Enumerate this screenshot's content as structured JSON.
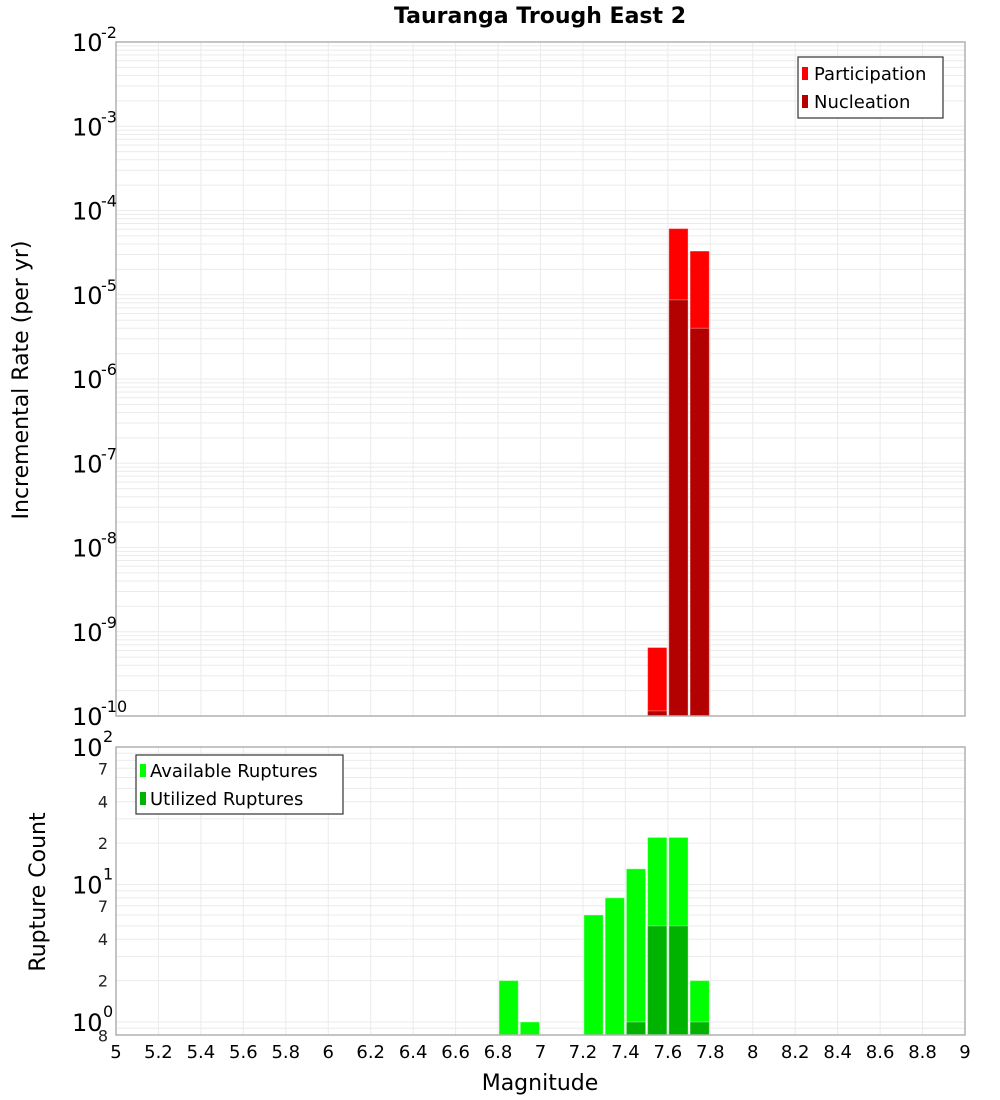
{
  "title": "Tauranga Trough East 2",
  "colors": {
    "participation": "#ff0000",
    "nucleation": "#b30000",
    "available": "#00ff00",
    "utilized": "#00b300",
    "grid": "#ebebeb",
    "axis": "#b0b0b0"
  },
  "chart_data": [
    {
      "type": "bar",
      "title": "Tauranga Trough East 2",
      "xlabel": "Magnitude",
      "ylabel": "Incremental Rate (per yr)",
      "yscale": "log",
      "xlim": [
        5,
        9
      ],
      "ylim": [
        1e-10,
        0.01
      ],
      "ytick_exponents": [
        -2,
        -3,
        -4,
        -5,
        -6,
        -7,
        -8,
        -9,
        -10
      ],
      "bin_width": 0.1,
      "legend": [
        "Participation",
        "Nucleation"
      ],
      "legend_position": "upper right",
      "grid": true,
      "series": [
        {
          "name": "Participation",
          "x": [
            7.55,
            7.65,
            7.75
          ],
          "values": [
            6.5e-10,
            6.1e-05,
            3.3e-05
          ]
        },
        {
          "name": "Nucleation",
          "x": [
            7.55,
            7.65,
            7.75
          ],
          "values": [
            1.15e-10,
            8.7e-06,
            4e-06
          ]
        }
      ]
    },
    {
      "type": "bar",
      "xlabel": "Magnitude",
      "ylabel": "Rupture Count",
      "yscale": "log",
      "xlim": [
        5,
        9
      ],
      "ylim": [
        0.8,
        100
      ],
      "bin_width": 0.1,
      "legend": [
        "Available Ruptures",
        "Utilized Ruptures"
      ],
      "legend_position": "upper left",
      "grid": true,
      "series": [
        {
          "name": "Available Ruptures",
          "x": [
            6.85,
            6.95,
            7.25,
            7.35,
            7.45,
            7.55,
            7.65,
            7.75
          ],
          "values": [
            2,
            1,
            6,
            8,
            13,
            22,
            22,
            2
          ]
        },
        {
          "name": "Utilized Ruptures",
          "x": [
            7.45,
            7.55,
            7.65,
            7.75
          ],
          "values": [
            1,
            5,
            5,
            1
          ]
        }
      ]
    }
  ],
  "xticks": [
    "5",
    "5.2",
    "5.4",
    "5.6",
    "5.8",
    "6",
    "6.2",
    "6.4",
    "6.6",
    "6.8",
    "7",
    "7.2",
    "7.4",
    "7.6",
    "7.8",
    "8",
    "8.2",
    "8.4",
    "8.6",
    "8.8",
    "9"
  ],
  "bottom_yticks": {
    "major": [
      {
        "base": "10",
        "exp": "2"
      },
      {
        "base": "10",
        "exp": "1"
      },
      {
        "base": "10",
        "exp": "0"
      }
    ],
    "minor_labels": [
      "7",
      "4",
      "2",
      "7",
      "4",
      "2",
      "8"
    ]
  }
}
